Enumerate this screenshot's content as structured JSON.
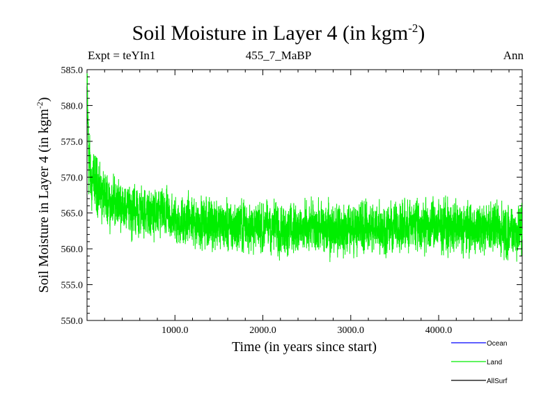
{
  "header": {
    "title": "Soil Moisture in Layer 4 (in kgm",
    "title_sup": "-2",
    "title_close": ")",
    "left": "Expt = teYIn1",
    "center": "455_7_MaBP",
    "right": "Ann"
  },
  "chart_data": {
    "type": "line",
    "xlabel": "Time (in years since start)",
    "ylabel": "Soil Moisture in Layer 4 (in kgm",
    "ylabel_sup": "-2",
    "ylabel_close": ")",
    "xlim": [
      0,
      4950
    ],
    "ylim": [
      550,
      585
    ],
    "x_ticks": [
      1000,
      2000,
      3000,
      4000
    ],
    "x_tick_labels": [
      "1000.0",
      "2000.0",
      "3000.0",
      "4000.0"
    ],
    "y_ticks": [
      550,
      555,
      560,
      565,
      570,
      575,
      580,
      585
    ],
    "y_tick_labels": [
      "550.0",
      "555.0",
      "560.0",
      "565.0",
      "570.0",
      "575.0",
      "580.0",
      "585.0"
    ],
    "grid": false,
    "legend_position": "bottom-right",
    "colors": {
      "Ocean": "#0000ff",
      "Land": "#00ee00",
      "AllSurf": "#000000"
    },
    "series": [
      {
        "name": "Ocean",
        "x": [],
        "y": []
      },
      {
        "name": "Land",
        "x": [
          0,
          20,
          50,
          100,
          150,
          200,
          300,
          400,
          500,
          600,
          700,
          800,
          900,
          1000,
          1200,
          1400,
          1600,
          1800,
          2000,
          2200,
          2400,
          2600,
          2800,
          3000,
          3200,
          3400,
          3600,
          3800,
          4000,
          4200,
          4400,
          4600,
          4800,
          4950
        ],
        "y": [
          583,
          572,
          570,
          569,
          568,
          567,
          566.5,
          566,
          565.5,
          565,
          565,
          564.5,
          564.5,
          564,
          563.8,
          563.6,
          563.4,
          563.2,
          563,
          563,
          562.9,
          562.9,
          562.8,
          563,
          563,
          563,
          563.1,
          563.2,
          563,
          563,
          562.9,
          562.8,
          562.7,
          562.6
        ],
        "range": [
          8,
          8,
          8,
          7.5,
          7,
          7,
          6.5,
          6.5,
          6.5,
          6.5,
          6.5,
          6.5,
          6.5,
          6.5,
          6.5,
          6.5,
          6.5,
          6.5,
          6.5,
          6.5,
          6.5,
          6.5,
          6.5,
          6.5,
          6.5,
          6.5,
          6.5,
          6.5,
          6.5,
          6.5,
          6.5,
          6.5,
          6.5,
          6.5
        ]
      },
      {
        "name": "AllSurf",
        "x": [],
        "y": []
      }
    ]
  }
}
